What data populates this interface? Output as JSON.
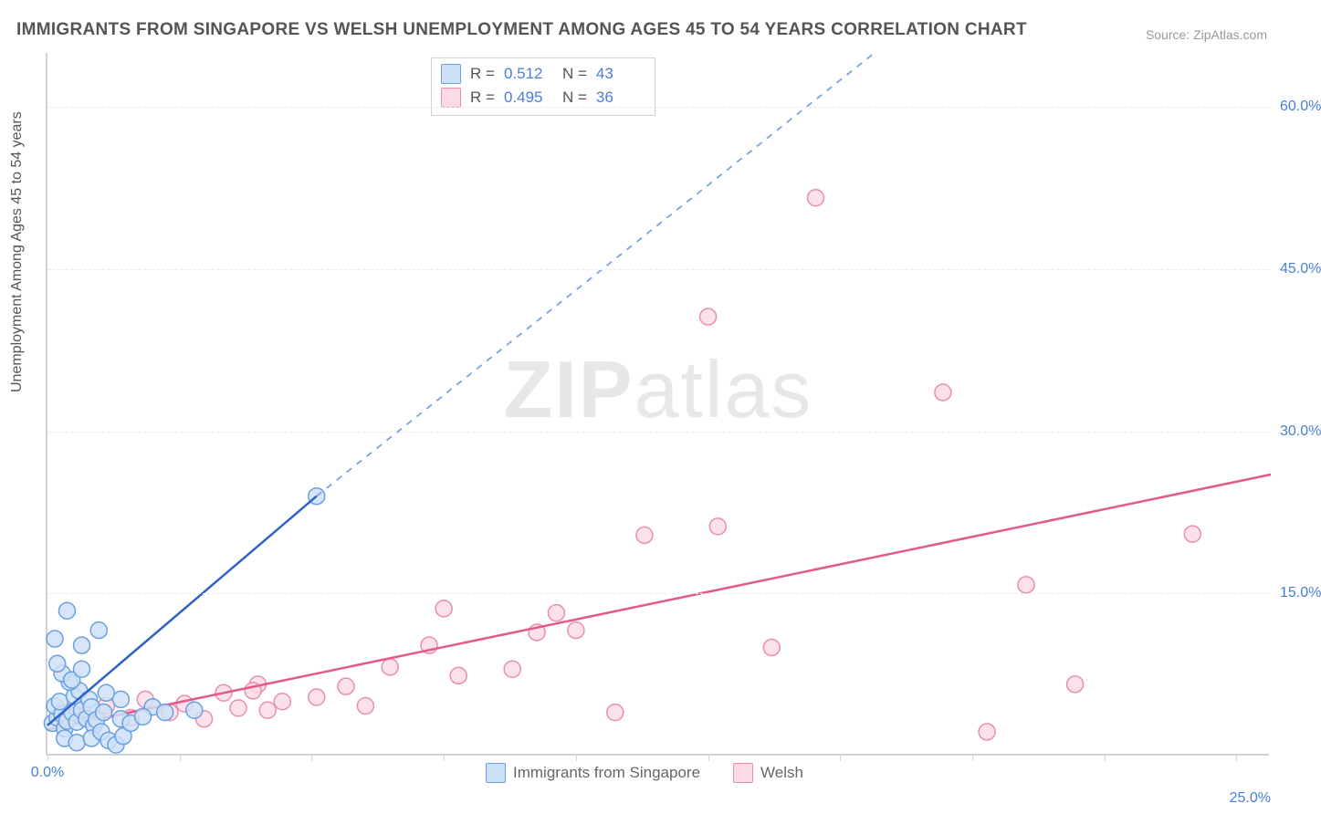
{
  "title": "IMMIGRANTS FROM SINGAPORE VS WELSH UNEMPLOYMENT AMONG AGES 45 TO 54 YEARS CORRELATION CHART",
  "source_label": "Source: ZipAtlas.com",
  "y_axis_title": "Unemployment Among Ages 45 to 54 years",
  "watermark_bold": "ZIP",
  "watermark_rest": "atlas",
  "chart": {
    "type": "scatter",
    "background_color": "#ffffff",
    "grid_color": "#e8e9ec",
    "axis_color": "#cfd3d8",
    "tick_label_color": "#4a7fd6",
    "xlim": [
      0,
      25
    ],
    "ylim": [
      0,
      65
    ],
    "y_ticks": [
      15.0,
      30.0,
      45.0,
      60.0
    ],
    "y_tick_labels": [
      "15.0%",
      "30.0%",
      "45.0%",
      "60.0%"
    ],
    "x_tick_positions": [
      0,
      2.7,
      5.4,
      8.1,
      10.8,
      13.5,
      16.2,
      18.9,
      21.6,
      24.3
    ],
    "x_origin_label": "0.0%",
    "x_end_label": "25.0%",
    "series": [
      {
        "name": "Immigrants from Singapore",
        "color_fill": "#cde1f6",
        "color_stroke": "#6aa0e0",
        "line_color": "#2f63c6",
        "line_dash_color": "#7aa1e2",
        "r_value": "0.512",
        "n_value": "43",
        "marker_radius": 9,
        "points": [
          [
            0.1,
            3.0
          ],
          [
            0.2,
            3.5
          ],
          [
            0.15,
            4.6
          ],
          [
            0.3,
            3.8
          ],
          [
            0.35,
            2.5
          ],
          [
            0.4,
            3.2
          ],
          [
            0.25,
            5.0
          ],
          [
            0.5,
            4.0
          ],
          [
            0.55,
            5.5
          ],
          [
            0.6,
            3.1
          ],
          [
            0.7,
            4.2
          ],
          [
            0.65,
            6.0
          ],
          [
            0.8,
            3.4
          ],
          [
            0.85,
            5.2
          ],
          [
            0.9,
            4.5
          ],
          [
            0.95,
            2.8
          ],
          [
            1.0,
            3.3
          ],
          [
            0.45,
            6.8
          ],
          [
            0.3,
            7.6
          ],
          [
            0.2,
            8.5
          ],
          [
            0.5,
            7.0
          ],
          [
            0.7,
            8.0
          ],
          [
            0.35,
            1.6
          ],
          [
            0.6,
            1.2
          ],
          [
            0.9,
            1.6
          ],
          [
            1.1,
            2.2
          ],
          [
            1.15,
            4.0
          ],
          [
            1.25,
            1.4
          ],
          [
            1.4,
            1.0
          ],
          [
            1.5,
            3.4
          ],
          [
            1.55,
            1.8
          ],
          [
            1.7,
            3.0
          ],
          [
            1.2,
            5.8
          ],
          [
            0.15,
            10.8
          ],
          [
            0.4,
            13.4
          ],
          [
            0.7,
            10.2
          ],
          [
            1.05,
            11.6
          ],
          [
            1.5,
            5.2
          ],
          [
            2.15,
            4.5
          ],
          [
            2.4,
            4.0
          ],
          [
            3.0,
            4.2
          ],
          [
            1.95,
            3.6
          ],
          [
            5.5,
            24.0
          ]
        ],
        "trend_solid": {
          "x1": 0.0,
          "y1": 2.8,
          "x2": 5.5,
          "y2": 24.0
        },
        "trend_dash": {
          "x1": 5.5,
          "y1": 24.0,
          "x2": 16.9,
          "y2": 65.0
        }
      },
      {
        "name": "Welsh",
        "color_fill": "#fadbe4",
        "color_stroke": "#e98eae",
        "line_color": "#e35a8a",
        "r_value": "0.495",
        "n_value": "36",
        "marker_radius": 9,
        "points": [
          [
            0.3,
            4.0
          ],
          [
            0.6,
            3.8
          ],
          [
            1.2,
            4.6
          ],
          [
            1.7,
            3.5
          ],
          [
            2.0,
            5.2
          ],
          [
            2.5,
            4.0
          ],
          [
            2.8,
            4.8
          ],
          [
            3.2,
            3.4
          ],
          [
            3.6,
            5.8
          ],
          [
            3.9,
            4.4
          ],
          [
            4.3,
            6.6
          ],
          [
            4.5,
            4.2
          ],
          [
            4.8,
            5.0
          ],
          [
            4.2,
            6.0
          ],
          [
            5.5,
            5.4
          ],
          [
            6.1,
            6.4
          ],
          [
            6.5,
            4.6
          ],
          [
            7.0,
            8.2
          ],
          [
            7.8,
            10.2
          ],
          [
            8.4,
            7.4
          ],
          [
            8.1,
            13.6
          ],
          [
            9.5,
            8.0
          ],
          [
            10.0,
            11.4
          ],
          [
            10.4,
            13.2
          ],
          [
            10.8,
            11.6
          ],
          [
            11.6,
            4.0
          ],
          [
            12.2,
            20.4
          ],
          [
            13.7,
            21.2
          ],
          [
            13.5,
            40.6
          ],
          [
            14.8,
            10.0
          ],
          [
            15.7,
            51.6
          ],
          [
            18.3,
            33.6
          ],
          [
            19.2,
            2.2
          ],
          [
            20.0,
            15.8
          ],
          [
            21.0,
            6.6
          ],
          [
            23.4,
            20.5
          ]
        ],
        "trend_solid": {
          "x1": 0.0,
          "y1": 2.4,
          "x2": 25.0,
          "y2": 26.0
        }
      }
    ],
    "stats_legend": {
      "r_label": "R  =",
      "n_label": "N  ="
    },
    "bottom_legend": {
      "items": [
        {
          "label": "Immigrants from Singapore",
          "fill": "#cde1f6",
          "stroke": "#6aa0e0"
        },
        {
          "label": "Welsh",
          "fill": "#fadbe4",
          "stroke": "#e98eae"
        }
      ]
    }
  }
}
